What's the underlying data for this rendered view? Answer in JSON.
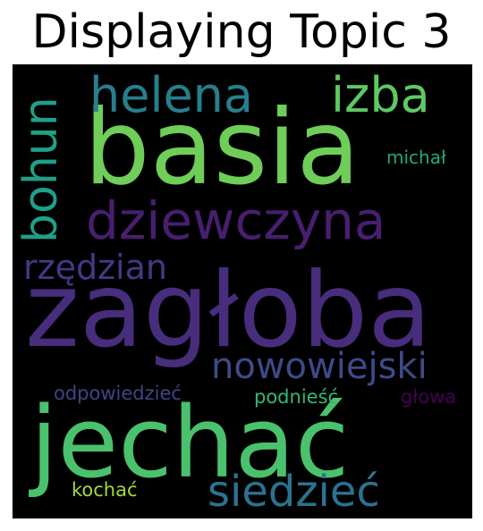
{
  "title": "Displaying Topic 3",
  "words": {
    "zagloba": {
      "text": "zagłoba",
      "color": "#472d7b"
    },
    "basia": {
      "text": "basia",
      "color": "#6ece58"
    },
    "jechac": {
      "text": "jechać",
      "color": "#4ac16d"
    },
    "dziewczyna": {
      "text": "dziewczyna",
      "color": "#481f70"
    },
    "helena": {
      "text": "helena",
      "color": "#277f8e"
    },
    "izba": {
      "text": "izba",
      "color": "#5ec962"
    },
    "bohun": {
      "text": "bohun",
      "color": "#1fa088"
    },
    "siedziec": {
      "text": "siedzieć",
      "color": "#2c728e"
    },
    "nowowiejski": {
      "text": "nowowiejski",
      "color": "#3e4a89"
    },
    "rzedzian": {
      "text": "rzędzian",
      "color": "#443983"
    },
    "michal": {
      "text": "michał",
      "color": "#22a884"
    },
    "odpowiedziec": {
      "text": "odpowiedzieć",
      "color": "#414487"
    },
    "podniesc": {
      "text": "podnieść",
      "color": "#35b779"
    },
    "glowa": {
      "text": "głowa",
      "color": "#440154"
    },
    "kochac": {
      "text": "kochać",
      "color": "#a0da39"
    }
  }
}
